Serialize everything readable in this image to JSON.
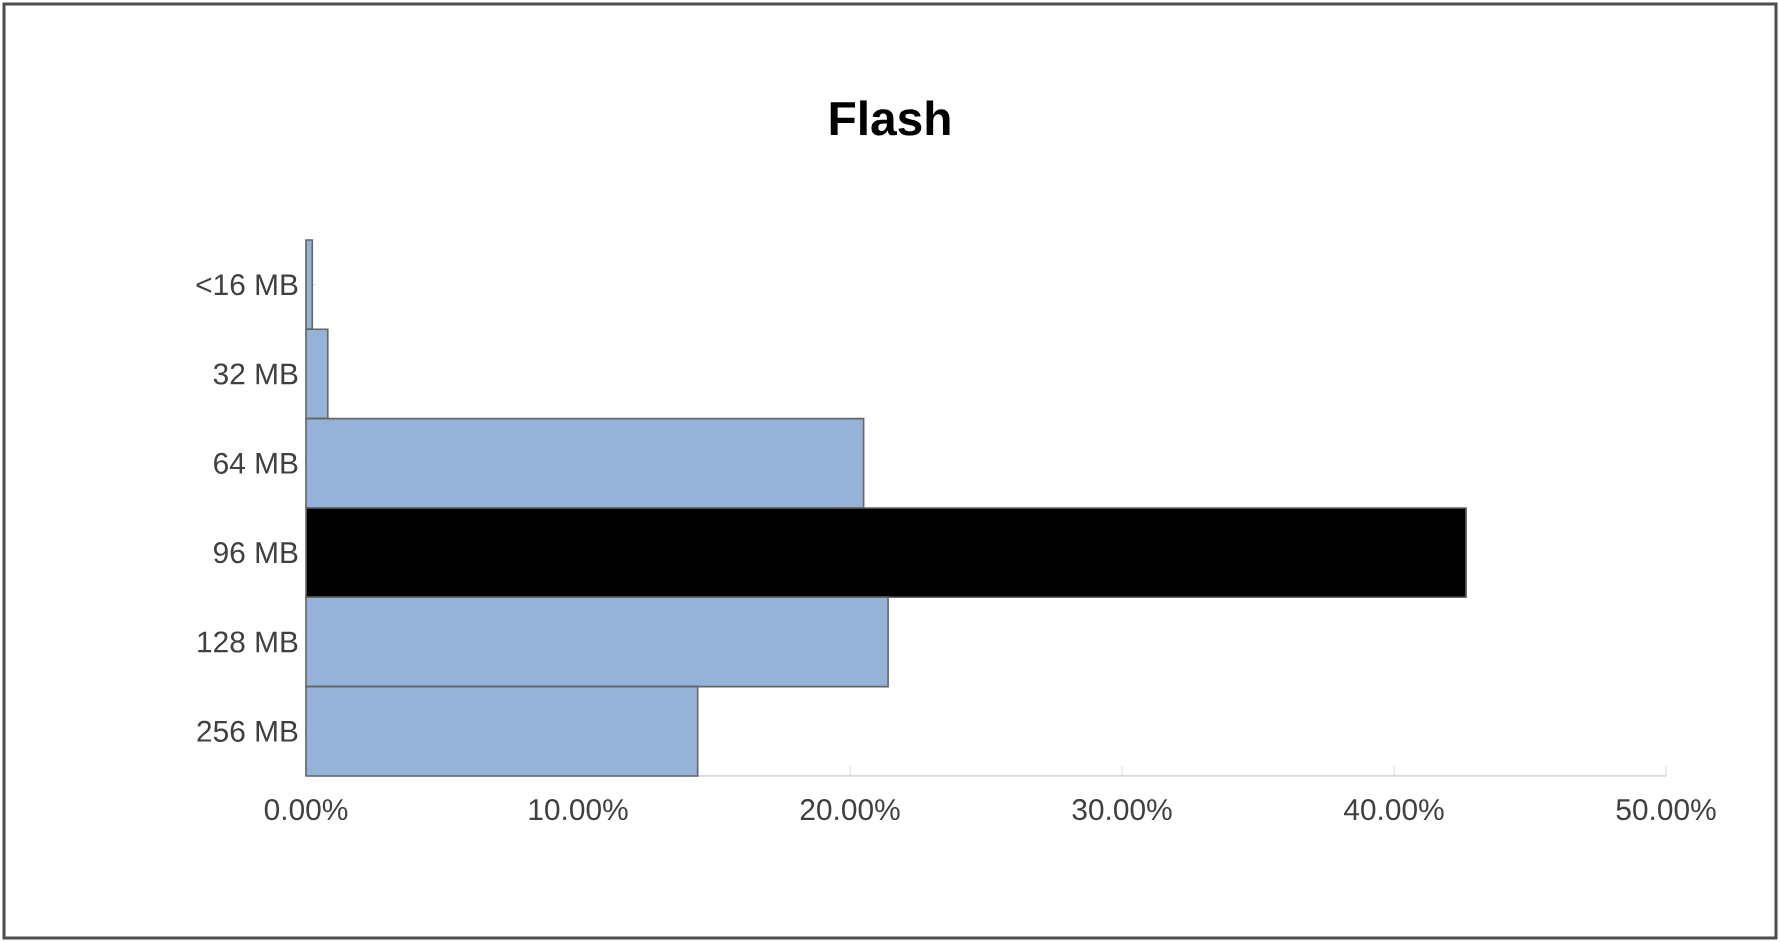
{
  "chart_data": {
    "type": "bar",
    "orientation": "horizontal",
    "title": "Flash",
    "categories": [
      "<16 MB",
      "32 MB",
      "64 MB",
      "96 MB",
      "128 MB",
      "256 MB"
    ],
    "values": [
      0.23,
      0.8,
      20.5,
      42.65,
      21.4,
      14.4
    ],
    "colors": [
      "#95b3d7",
      "#95b3d7",
      "#95b3d7",
      "#000000",
      "#95b3d7",
      "#95b3d7"
    ],
    "xlim": [
      0,
      50
    ],
    "xticks": [
      {
        "value": 0,
        "label": "0.00%"
      },
      {
        "value": 10,
        "label": "10.00%"
      },
      {
        "value": 20,
        "label": "20.00%"
      },
      {
        "value": 30,
        "label": "30.00%"
      },
      {
        "value": 40,
        "label": "40.00%"
      },
      {
        "value": 50,
        "label": "50.00%"
      }
    ],
    "grid": false
  }
}
